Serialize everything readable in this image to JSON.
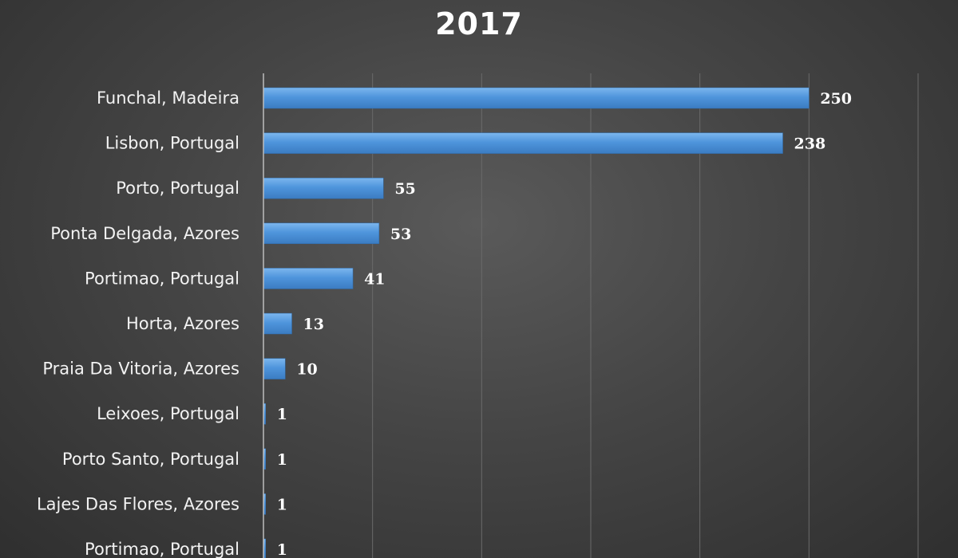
{
  "chart_data": {
    "type": "bar",
    "orientation": "horizontal",
    "title": "2017",
    "xlabel": "",
    "ylabel": "",
    "categories": [
      "Funchal, Madeira",
      "Lisbon, Portugal",
      "Porto, Portugal",
      "Ponta Delgada, Azores",
      "Portimao, Portugal",
      "Horta, Azores",
      "Praia Da Vitoria, Azores",
      "Leixoes, Portugal",
      "Porto Santo, Portugal",
      "Lajes Das Flores, Azores",
      "Portimao, Portugal"
    ],
    "values": [
      250,
      238,
      55,
      53,
      41,
      13,
      10,
      1,
      1,
      1,
      1
    ],
    "xlim": [
      0,
      300
    ],
    "grid": true,
    "bar_color": "#4f95dc",
    "data_labels": true
  }
}
